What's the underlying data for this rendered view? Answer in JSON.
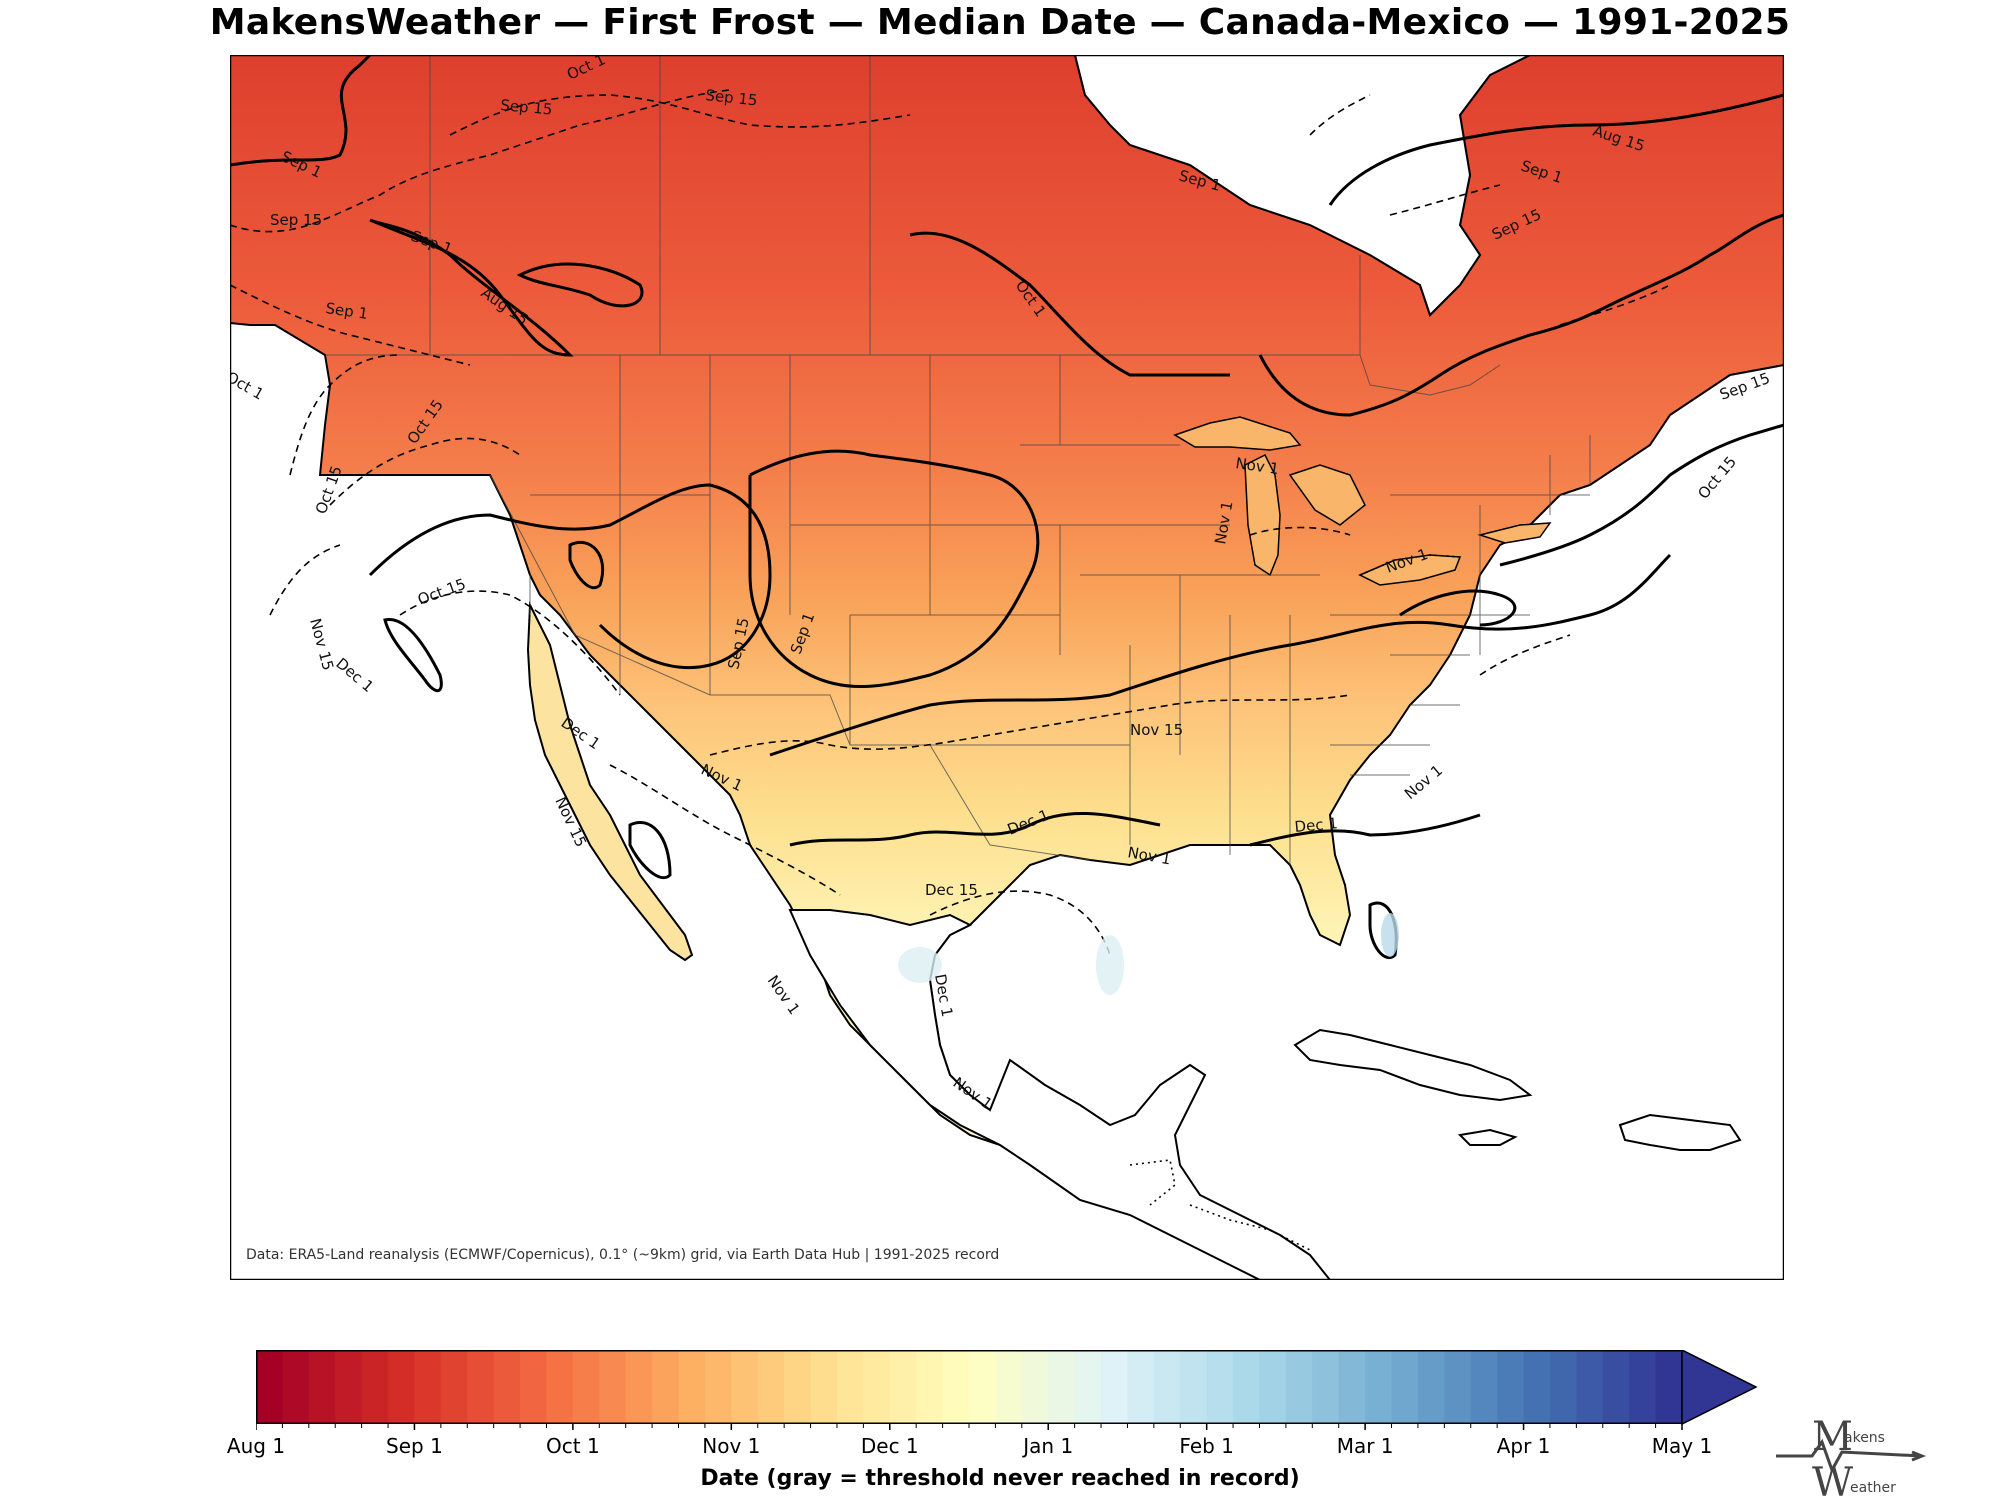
{
  "title": "MakensWeather — First Frost — Median Date — Canada-Mexico — 1991-2025",
  "credit": "Data: ERA5-Land reanalysis (ECMWF/Copernicus), 0.1° (~9km) grid, via Earth Data Hub | 1991-2025 record",
  "contour_labels": [
    "Aug 15",
    "Sep 1",
    "Sep 15",
    "Oct 1",
    "Oct 15",
    "Nov 1",
    "Nov 15",
    "Dec 1",
    "Dec 15"
  ],
  "colorbar": {
    "label": "Date (gray = threshold never reached in record)",
    "ticks": [
      "Aug 1",
      "Sep 1",
      "Oct 1",
      "Nov 1",
      "Dec 1",
      "Jan 1",
      "Feb 1",
      "Mar 1",
      "Apr 1",
      "May 1"
    ],
    "extend": "max",
    "colormap": "RdYlBu",
    "colors": [
      "#a50026",
      "#d73027",
      "#f46d43",
      "#fdae61",
      "#fee090",
      "#ffffbf",
      "#e0f3f8",
      "#abd9e9",
      "#74add1",
      "#4575b4",
      "#313695"
    ]
  },
  "logo": {
    "line1": "akens",
    "line2": "eather",
    "initial1": "M",
    "initial2": "W"
  },
  "colors": {
    "ocean": "#ffffff",
    "land_outline": "#000000",
    "frame": "#000000"
  }
}
